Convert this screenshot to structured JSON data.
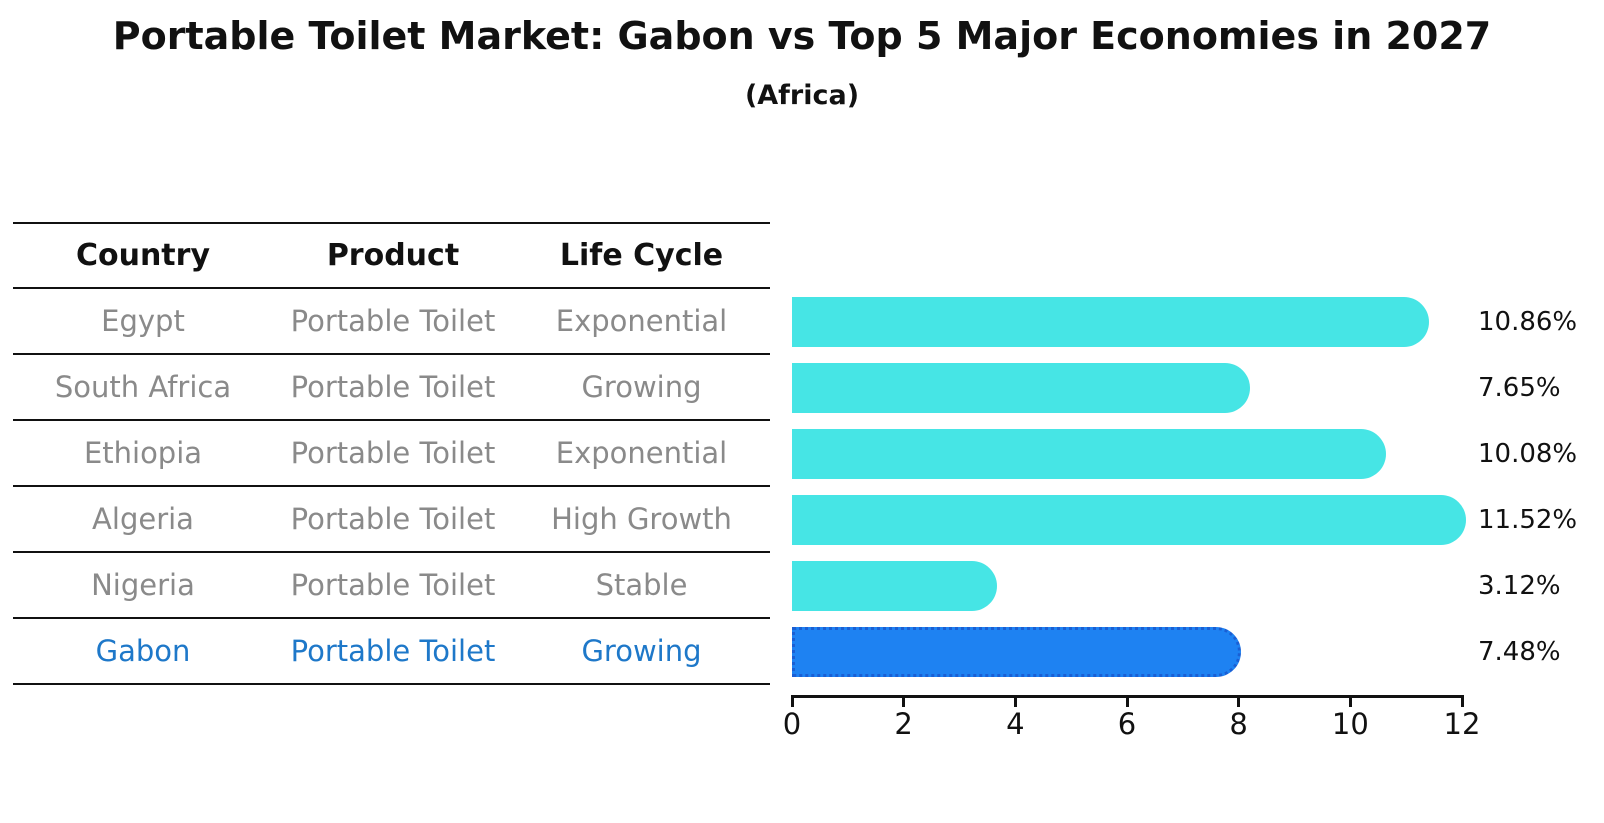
{
  "title": "Portable Toilet Market: Gabon vs Top 5 Major Economies in 2027",
  "subtitle": "(Africa)",
  "table": {
    "headers": [
      "Country",
      "Product",
      "Life Cycle"
    ],
    "rows": [
      {
        "country": "Egypt",
        "product": "Portable Toilet",
        "life_cycle": "Exponential",
        "highlight": false
      },
      {
        "country": "South Africa",
        "product": "Portable Toilet",
        "life_cycle": "Growing",
        "highlight": false
      },
      {
        "country": "Ethiopia",
        "product": "Portable Toilet",
        "life_cycle": "Exponential",
        "highlight": false
      },
      {
        "country": "Algeria",
        "product": "Portable Toilet",
        "life_cycle": "High Growth",
        "highlight": false
      },
      {
        "country": "Nigeria",
        "product": "Portable Toilet",
        "life_cycle": "Stable",
        "highlight": false
      },
      {
        "country": "Gabon",
        "product": "Portable Toilet",
        "life_cycle": "Growing",
        "highlight": true
      }
    ]
  },
  "chart_data": {
    "type": "bar",
    "orientation": "horizontal",
    "title": "Portable Toilet Market: Gabon vs Top 5 Major Economies in 2027",
    "subtitle": "(Africa)",
    "categories": [
      "Egypt",
      "South Africa",
      "Ethiopia",
      "Algeria",
      "Nigeria",
      "Gabon"
    ],
    "values": [
      10.86,
      7.65,
      10.08,
      11.52,
      3.12,
      7.48
    ],
    "value_labels": [
      "10.86%",
      "7.65%",
      "10.08%",
      "11.52%",
      "3.12%",
      "7.48%"
    ],
    "xlim": [
      0,
      12
    ],
    "x_ticks": [
      "0",
      "2",
      "4",
      "6",
      "8",
      "10",
      "12"
    ],
    "grid": false,
    "legend": false,
    "highlight_category": "Gabon"
  },
  "colors": {
    "bar_fill": "#46e5e5",
    "highlight_fill": "#1e82f2",
    "highlight_border": "#1a5fd4",
    "highlight_text": "#1e78c9",
    "body_text": "#8a8a8a",
    "heading_text": "#111111"
  }
}
